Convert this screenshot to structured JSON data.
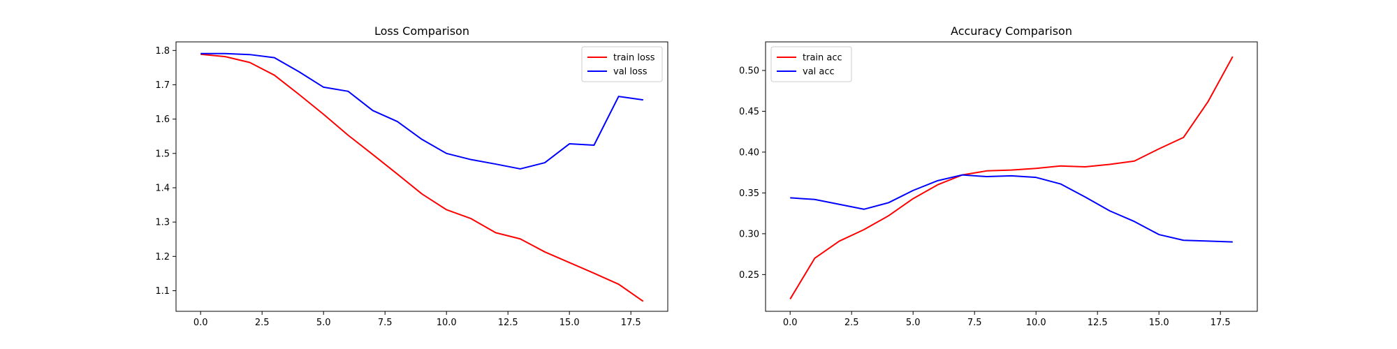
{
  "chart_data": [
    {
      "type": "line",
      "title": "Loss Comparison",
      "xlabel": "",
      "ylabel": "",
      "xlim": [
        -1,
        19
      ],
      "ylim": [
        1.04,
        1.825
      ],
      "xticks": [
        0.0,
        2.5,
        5.0,
        7.5,
        10.0,
        12.5,
        15.0,
        17.5
      ],
      "xtick_labels": [
        "0.0",
        "2.5",
        "5.0",
        "7.5",
        "10.0",
        "12.5",
        "15.0",
        "17.5"
      ],
      "yticks": [
        1.1,
        1.2,
        1.3,
        1.4,
        1.5,
        1.6,
        1.7,
        1.8
      ],
      "ytick_labels": [
        "1.1",
        "1.2",
        "1.3",
        "1.4",
        "1.5",
        "1.6",
        "1.7",
        "1.8"
      ],
      "grid": false,
      "legend_position": "top-right",
      "x": [
        0,
        1,
        2,
        3,
        4,
        5,
        6,
        7,
        8,
        9,
        10,
        11,
        12,
        13,
        14,
        15,
        16,
        17,
        18
      ],
      "series": [
        {
          "name": "train loss",
          "color": "#ff0000",
          "values": [
            1.789,
            1.782,
            1.765,
            1.728,
            1.672,
            1.614,
            1.553,
            1.497,
            1.44,
            1.382,
            1.336,
            1.31,
            1.269,
            1.251,
            1.213,
            1.182,
            1.151,
            1.119,
            1.069
          ]
        },
        {
          "name": "val loss",
          "color": "#0000ff",
          "values": [
            1.791,
            1.791,
            1.788,
            1.779,
            1.738,
            1.693,
            1.681,
            1.625,
            1.593,
            1.541,
            1.5,
            1.482,
            1.469,
            1.455,
            1.473,
            1.528,
            1.524,
            1.666,
            1.656
          ]
        }
      ]
    },
    {
      "type": "line",
      "title": "Accuracy Comparison",
      "xlabel": "",
      "ylabel": "",
      "xlim": [
        -1,
        19
      ],
      "ylim": [
        0.205,
        0.535
      ],
      "xticks": [
        0.0,
        2.5,
        5.0,
        7.5,
        10.0,
        12.5,
        15.0,
        17.5
      ],
      "xtick_labels": [
        "0.0",
        "2.5",
        "5.0",
        "7.5",
        "10.0",
        "12.5",
        "15.0",
        "17.5"
      ],
      "yticks": [
        0.25,
        0.3,
        0.35,
        0.4,
        0.45,
        0.5
      ],
      "ytick_labels": [
        "0.25",
        "0.30",
        "0.35",
        "0.40",
        "0.45",
        "0.50"
      ],
      "grid": false,
      "legend_position": "top-left",
      "x": [
        0,
        1,
        2,
        3,
        4,
        5,
        6,
        7,
        8,
        9,
        10,
        11,
        12,
        13,
        14,
        15,
        16,
        17,
        18
      ],
      "series": [
        {
          "name": "train acc",
          "color": "#ff0000",
          "values": [
            0.22,
            0.27,
            0.291,
            0.305,
            0.322,
            0.343,
            0.36,
            0.372,
            0.377,
            0.378,
            0.38,
            0.383,
            0.382,
            0.385,
            0.389,
            0.404,
            0.418,
            0.462,
            0.517
          ]
        },
        {
          "name": "val acc",
          "color": "#0000ff",
          "values": [
            0.344,
            0.342,
            0.336,
            0.33,
            0.338,
            0.353,
            0.365,
            0.372,
            0.37,
            0.371,
            0.369,
            0.361,
            0.345,
            0.328,
            0.315,
            0.299,
            0.292,
            0.291,
            0.29
          ]
        }
      ]
    }
  ]
}
